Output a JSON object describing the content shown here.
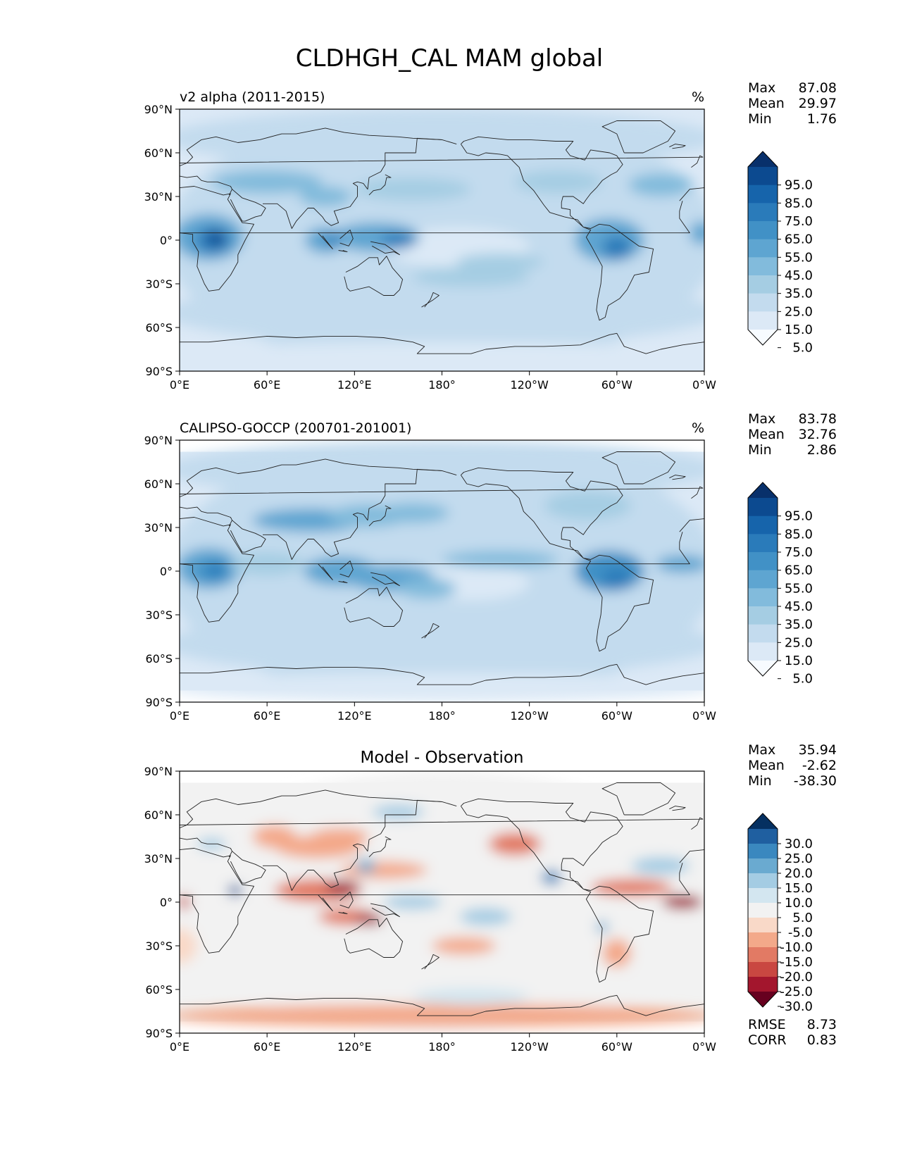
{
  "figure": {
    "title": "CLDHGH_CAL MAM global"
  },
  "axis_ticks": {
    "x": [
      "0°E",
      "60°E",
      "120°E",
      "180°",
      "120°W",
      "60°W",
      "0°W"
    ],
    "y": [
      "90°N",
      "60°N",
      "30°N",
      "0°",
      "30°S",
      "60°S",
      "90°S"
    ]
  },
  "panels": [
    {
      "title_left": "v2 alpha (2011-2015)",
      "title_center": "",
      "units": "%",
      "stats": [
        {
          "label": "Max",
          "value": "87.08"
        },
        {
          "label": "Mean",
          "value": "29.97"
        },
        {
          "label": "Min",
          "value": "1.76"
        }
      ],
      "colorbar": {
        "labels": [
          "95.0",
          "85.0",
          "75.0",
          "65.0",
          "55.0",
          "45.0",
          "35.0",
          "25.0",
          "15.0",
          "5.0"
        ],
        "colors": [
          "#08306b",
          "#0c4a90",
          "#1664ab",
          "#2a7bba",
          "#4191c6",
          "#5ea5d1",
          "#82bbdc",
          "#a5cde3",
          "#c3dbee",
          "#dce9f6",
          "#f7fbff"
        ]
      },
      "extra_stats": []
    },
    {
      "title_left": "CALIPSO-GOCCP (200701-201001)",
      "title_center": "",
      "units": "%",
      "stats": [
        {
          "label": "Max",
          "value": "83.78"
        },
        {
          "label": "Mean",
          "value": "32.76"
        },
        {
          "label": "Min",
          "value": "2.86"
        }
      ],
      "colorbar": {
        "labels": [
          "95.0",
          "85.0",
          "75.0",
          "65.0",
          "55.0",
          "45.0",
          "35.0",
          "25.0",
          "15.0",
          "5.0"
        ],
        "colors": [
          "#08306b",
          "#0c4a90",
          "#1664ab",
          "#2a7bba",
          "#4191c6",
          "#5ea5d1",
          "#82bbdc",
          "#a5cde3",
          "#c3dbee",
          "#dce9f6",
          "#f7fbff"
        ]
      },
      "extra_stats": []
    },
    {
      "title_left": "",
      "title_center": "Model - Observation",
      "units": "",
      "stats": [
        {
          "label": "Max",
          "value": "35.94"
        },
        {
          "label": "Mean",
          "value": "-2.62"
        },
        {
          "label": "Min",
          "value": "-38.30"
        }
      ],
      "colorbar": {
        "labels": [
          "30.0",
          "25.0",
          "20.0",
          "15.0",
          "10.0",
          "5.0",
          "-5.0",
          "-10.0",
          "-15.0",
          "-20.0",
          "-25.0",
          "-30.0"
        ],
        "colors": [
          "#053061",
          "#1f5fa0",
          "#3a88bf",
          "#6aaad0",
          "#a4cce3",
          "#d3e6f0",
          "#f2f2f2",
          "#f9d9c8",
          "#f3a98a",
          "#e27a64",
          "#c94741",
          "#a3162d",
          "#67001f"
        ]
      },
      "extra_stats": [
        {
          "label": "RMSE",
          "value": "8.73"
        },
        {
          "label": "CORR",
          "value": "0.83"
        }
      ]
    }
  ],
  "chart_data": [
    {
      "type": "heatmap",
      "title": "v2 alpha (2011-2015)",
      "units": "%",
      "xlabel": "",
      "ylabel": "",
      "xlim": [
        0,
        360
      ],
      "ylim": [
        -90,
        90
      ],
      "x_ticks": [
        "0°E",
        "60°E",
        "120°E",
        "180°",
        "120°W",
        "60°W",
        "0°W"
      ],
      "y_ticks": [
        "90°N",
        "60°N",
        "30°N",
        "0°",
        "30°S",
        "60°S",
        "90°S"
      ],
      "max": 87.08,
      "mean": 29.97,
      "min": 1.76,
      "contour_levels": [
        5,
        15,
        25,
        35,
        45,
        55,
        65,
        75,
        85,
        95
      ]
    },
    {
      "type": "heatmap",
      "title": "CALIPSO-GOCCP (200701-201001)",
      "units": "%",
      "xlabel": "",
      "ylabel": "",
      "xlim": [
        0,
        360
      ],
      "ylim": [
        -90,
        90
      ],
      "x_ticks": [
        "0°E",
        "60°E",
        "120°E",
        "180°",
        "120°W",
        "60°W",
        "0°W"
      ],
      "y_ticks": [
        "90°N",
        "60°N",
        "30°N",
        "0°",
        "30°S",
        "60°S",
        "90°S"
      ],
      "max": 83.78,
      "mean": 32.76,
      "min": 2.86,
      "contour_levels": [
        5,
        15,
        25,
        35,
        45,
        55,
        65,
        75,
        85,
        95
      ]
    },
    {
      "type": "heatmap",
      "title": "Model - Observation",
      "xlabel": "",
      "ylabel": "",
      "xlim": [
        0,
        360
      ],
      "ylim": [
        -90,
        90
      ],
      "x_ticks": [
        "0°E",
        "60°E",
        "120°E",
        "180°",
        "120°W",
        "60°W",
        "0°W"
      ],
      "y_ticks": [
        "90°N",
        "60°N",
        "30°N",
        "0°",
        "30°S",
        "60°S",
        "90°S"
      ],
      "max": 35.94,
      "mean": -2.62,
      "min": -38.3,
      "rmse": 8.73,
      "corr": 0.83,
      "contour_levels": [
        -30,
        -25,
        -20,
        -15,
        -10,
        -5,
        5,
        10,
        15,
        20,
        25,
        30
      ]
    }
  ]
}
